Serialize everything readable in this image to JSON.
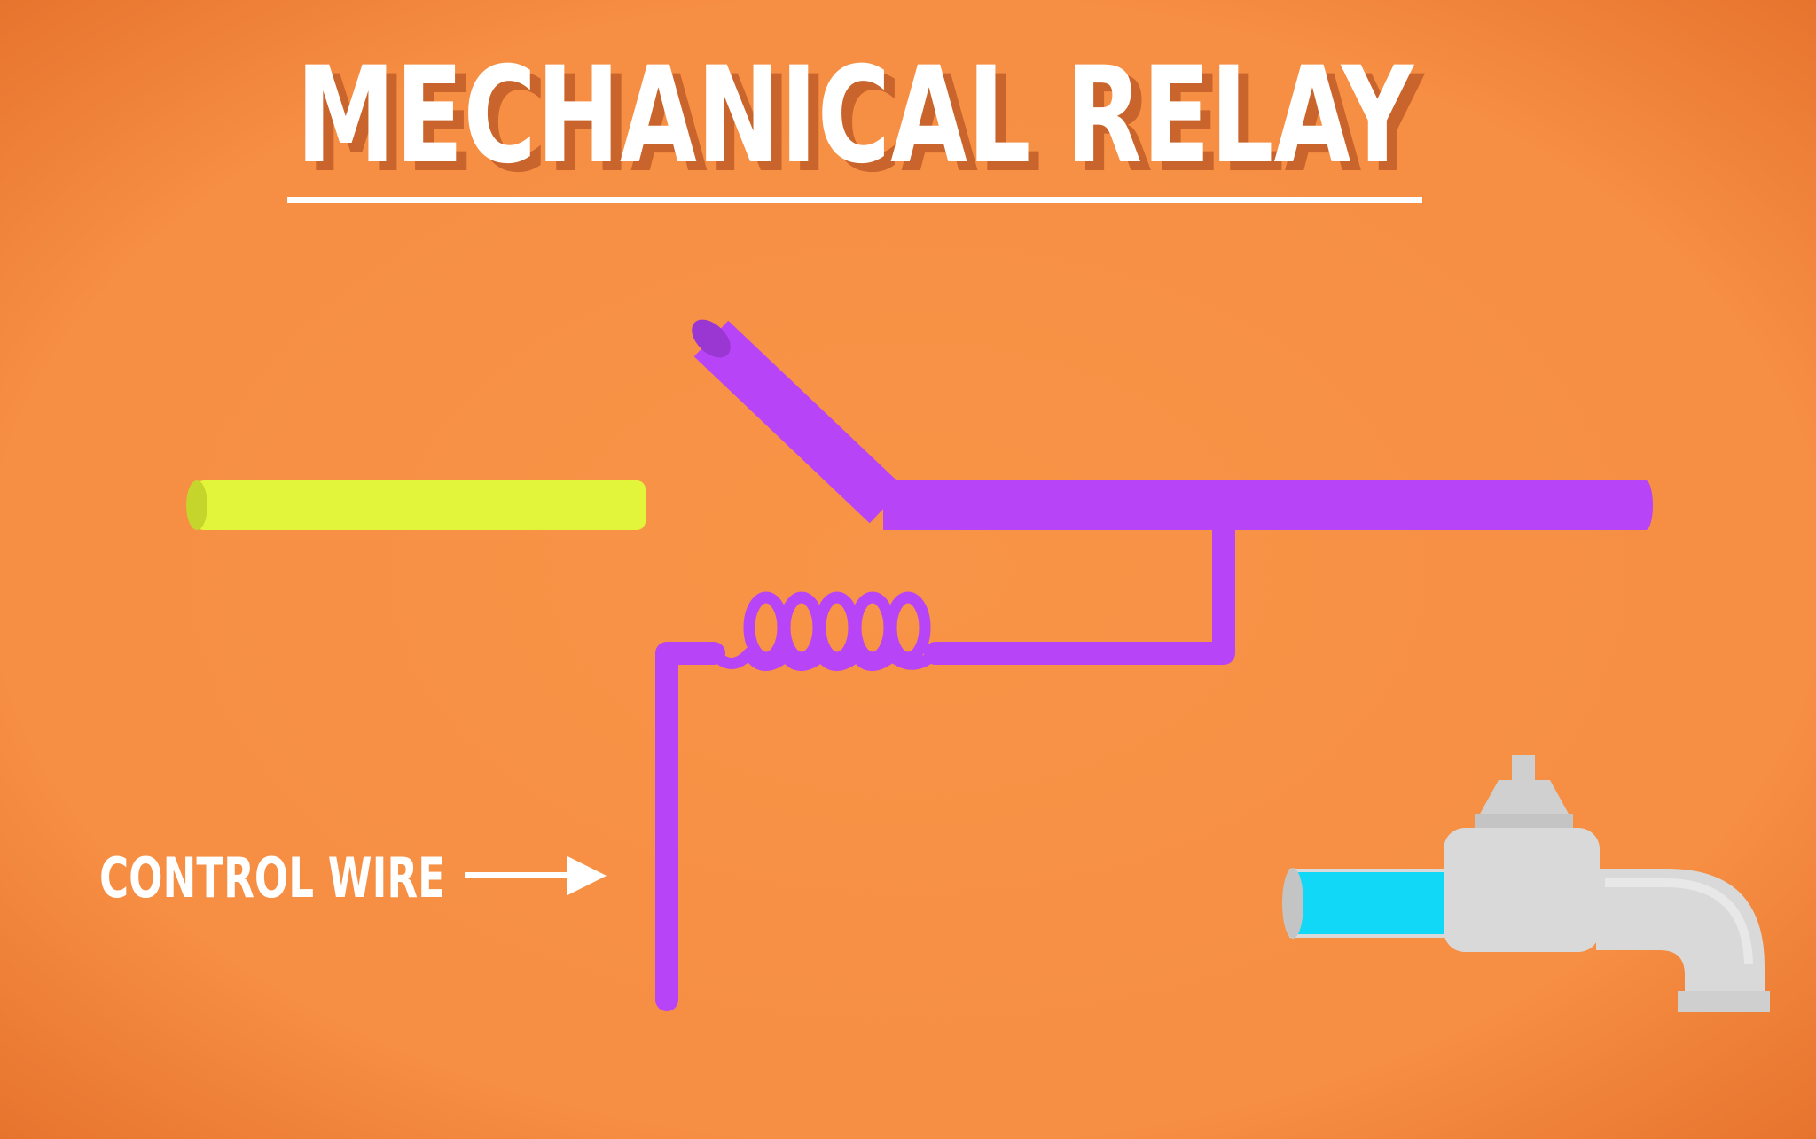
{
  "title": "MECHANICAL RELAY",
  "labels": {
    "control_wire": "CONTROL WIRE"
  },
  "colors": {
    "background": "#F79045",
    "background_edge": "#E9752E",
    "title": "#FFFFFF",
    "title_shadow": "#C9652C",
    "input_wire": "#E2F53A",
    "input_wire_end": "#C5D52C",
    "relay_wire": "#B744F6",
    "relay_wire_end": "#9A36D1",
    "faucet_body": "#D9D9D9",
    "faucet_shade": "#C4C4C4",
    "water": "#12D8F8"
  },
  "icons": {
    "faucet": "faucet-icon",
    "arrow": "arrow-right-icon",
    "coil": "coil-icon"
  }
}
